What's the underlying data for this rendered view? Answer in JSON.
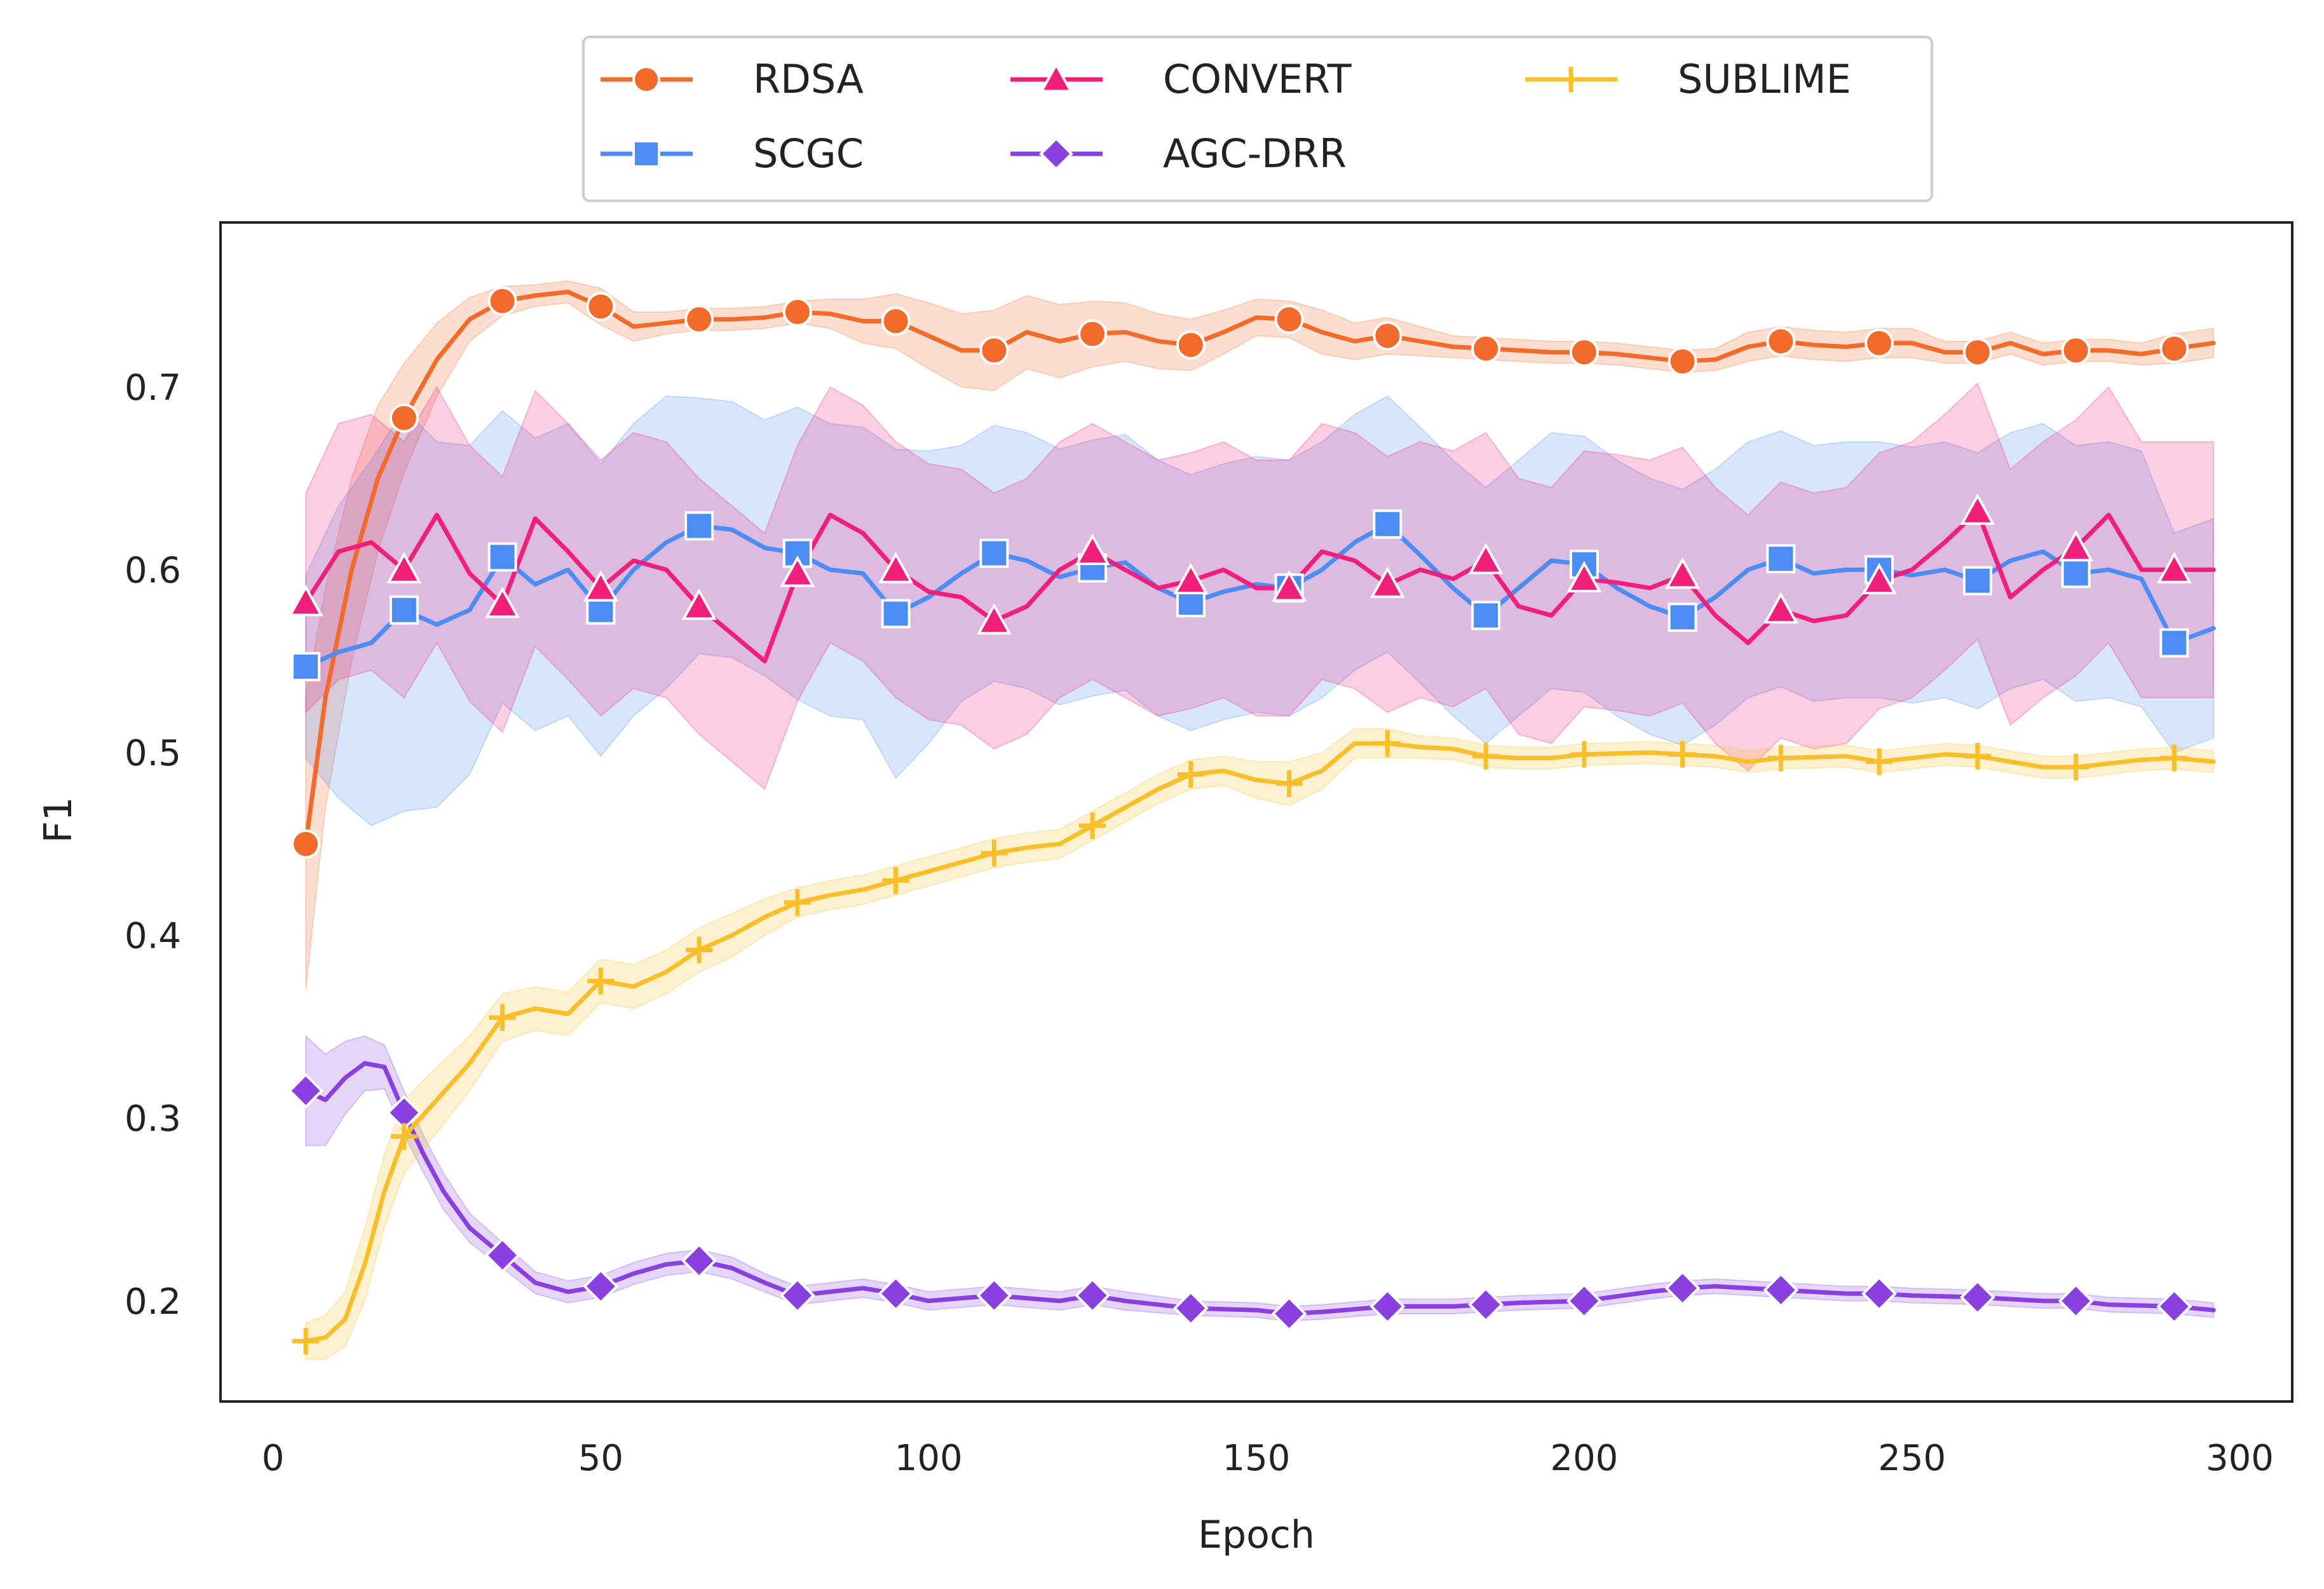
{
  "chart_data": {
    "type": "line",
    "title": "",
    "xlabel": "Epoch",
    "ylabel": "F1",
    "xlim": [
      -8,
      308
    ],
    "ylim": [
      0.145,
      0.79
    ],
    "xticks": [
      0,
      50,
      100,
      150,
      200,
      250,
      300
    ],
    "yticks": [
      0.2,
      0.3,
      0.4,
      0.5,
      0.6,
      0.7
    ],
    "xtick_labels": [
      "0",
      "50",
      "100",
      "150",
      "200",
      "250",
      "300"
    ],
    "ytick_labels": [
      "0.2",
      "0.3",
      "0.4",
      "0.5",
      "0.6",
      "0.7"
    ],
    "grid": false,
    "legend": {
      "position": "top-center-outside",
      "columns": 3
    },
    "marker_x": [
      5,
      20,
      35,
      50,
      65,
      80,
      95,
      110,
      125,
      140,
      155,
      170,
      185,
      200,
      215,
      230,
      245,
      260,
      275,
      290
    ],
    "series": [
      {
        "name": "RDSA",
        "color": "#f26b2a",
        "marker": "circle",
        "x": [
          5,
          8,
          12,
          16,
          20,
          25,
          30,
          35,
          40,
          45,
          50,
          55,
          60,
          65,
          70,
          75,
          80,
          85,
          90,
          95,
          100,
          105,
          110,
          115,
          120,
          125,
          130,
          135,
          140,
          145,
          150,
          155,
          160,
          165,
          170,
          175,
          180,
          185,
          190,
          195,
          200,
          205,
          210,
          215,
          220,
          225,
          230,
          235,
          240,
          245,
          250,
          255,
          260,
          265,
          270,
          275,
          280,
          285,
          290,
          296
        ],
        "values": [
          0.45,
          0.53,
          0.6,
          0.65,
          0.683,
          0.715,
          0.737,
          0.747,
          0.75,
          0.752,
          0.744,
          0.733,
          0.735,
          0.737,
          0.737,
          0.738,
          0.741,
          0.74,
          0.736,
          0.736,
          0.728,
          0.72,
          0.72,
          0.73,
          0.725,
          0.729,
          0.73,
          0.725,
          0.723,
          0.73,
          0.738,
          0.737,
          0.73,
          0.725,
          0.728,
          0.725,
          0.722,
          0.721,
          0.72,
          0.719,
          0.719,
          0.718,
          0.716,
          0.714,
          0.715,
          0.722,
          0.725,
          0.723,
          0.722,
          0.724,
          0.724,
          0.719,
          0.719,
          0.724,
          0.718,
          0.72,
          0.72,
          0.718,
          0.721,
          0.724
        ],
        "band": [
          0.08,
          0.06,
          0.05,
          0.04,
          0.03,
          0.02,
          0.012,
          0.008,
          0.006,
          0.006,
          0.01,
          0.008,
          0.006,
          0.006,
          0.006,
          0.006,
          0.006,
          0.008,
          0.012,
          0.015,
          0.018,
          0.02,
          0.022,
          0.02,
          0.02,
          0.018,
          0.016,
          0.015,
          0.014,
          0.012,
          0.01,
          0.01,
          0.012,
          0.01,
          0.01,
          0.008,
          0.006,
          0.006,
          0.006,
          0.006,
          0.006,
          0.006,
          0.006,
          0.006,
          0.006,
          0.008,
          0.008,
          0.008,
          0.008,
          0.008,
          0.008,
          0.006,
          0.006,
          0.006,
          0.006,
          0.006,
          0.006,
          0.006,
          0.008,
          0.008
        ]
      },
      {
        "name": "SCGC",
        "color": "#4c8cf5",
        "marker": "square",
        "x": [
          5,
          10,
          15,
          20,
          25,
          30,
          35,
          40,
          45,
          50,
          55,
          60,
          65,
          70,
          75,
          80,
          85,
          90,
          95,
          100,
          105,
          110,
          115,
          120,
          125,
          130,
          135,
          140,
          145,
          150,
          155,
          160,
          165,
          170,
          175,
          180,
          185,
          190,
          195,
          200,
          205,
          210,
          215,
          220,
          225,
          230,
          235,
          240,
          245,
          250,
          255,
          260,
          265,
          270,
          275,
          280,
          285,
          290,
          296
        ],
        "values": [
          0.547,
          0.555,
          0.56,
          0.578,
          0.57,
          0.578,
          0.607,
          0.592,
          0.6,
          0.578,
          0.6,
          0.615,
          0.624,
          0.622,
          0.612,
          0.609,
          0.6,
          0.598,
          0.576,
          0.585,
          0.598,
          0.609,
          0.605,
          0.596,
          0.601,
          0.604,
          0.59,
          0.582,
          0.588,
          0.592,
          0.59,
          0.6,
          0.615,
          0.625,
          0.608,
          0.59,
          0.575,
          0.59,
          0.605,
          0.603,
          0.59,
          0.58,
          0.574,
          0.585,
          0.6,
          0.606,
          0.598,
          0.6,
          0.6,
          0.597,
          0.6,
          0.594,
          0.605,
          0.61,
          0.598,
          0.6,
          0.595,
          0.56,
          0.568
        ],
        "band": [
          0.05,
          0.08,
          0.1,
          0.11,
          0.1,
          0.09,
          0.08,
          0.08,
          0.08,
          0.08,
          0.08,
          0.08,
          0.07,
          0.07,
          0.07,
          0.08,
          0.08,
          0.08,
          0.09,
          0.08,
          0.07,
          0.07,
          0.07,
          0.07,
          0.07,
          0.07,
          0.07,
          0.07,
          0.07,
          0.07,
          0.07,
          0.07,
          0.07,
          0.07,
          0.07,
          0.07,
          0.07,
          0.07,
          0.07,
          0.07,
          0.07,
          0.07,
          0.07,
          0.07,
          0.07,
          0.07,
          0.07,
          0.07,
          0.07,
          0.07,
          0.07,
          0.07,
          0.07,
          0.07,
          0.07,
          0.07,
          0.07,
          0.06,
          0.06
        ]
      },
      {
        "name": "CONVERT",
        "color": "#f0207a",
        "marker": "triangle",
        "x": [
          5,
          10,
          15,
          20,
          25,
          30,
          35,
          40,
          45,
          50,
          55,
          60,
          65,
          70,
          75,
          80,
          85,
          90,
          95,
          100,
          105,
          110,
          115,
          120,
          125,
          130,
          135,
          140,
          145,
          150,
          155,
          160,
          165,
          170,
          175,
          180,
          185,
          190,
          195,
          200,
          205,
          210,
          215,
          220,
          225,
          230,
          235,
          240,
          245,
          250,
          255,
          260,
          265,
          270,
          275,
          280,
          285,
          290,
          296
        ],
        "values": [
          0.582,
          0.61,
          0.615,
          0.6,
          0.63,
          0.598,
          0.581,
          0.628,
          0.61,
          0.59,
          0.605,
          0.6,
          0.58,
          0.565,
          0.55,
          0.598,
          0.63,
          0.62,
          0.6,
          0.588,
          0.585,
          0.572,
          0.58,
          0.6,
          0.61,
          0.6,
          0.59,
          0.594,
          0.6,
          0.59,
          0.59,
          0.61,
          0.605,
          0.592,
          0.6,
          0.595,
          0.605,
          0.58,
          0.575,
          0.595,
          0.593,
          0.59,
          0.597,
          0.575,
          0.56,
          0.578,
          0.572,
          0.575,
          0.594,
          0.6,
          0.615,
          0.632,
          0.585,
          0.6,
          0.612,
          0.63,
          0.6,
          0.6,
          0.6
        ],
        "band": [
          0.06,
          0.07,
          0.07,
          0.07,
          0.07,
          0.07,
          0.07,
          0.07,
          0.07,
          0.07,
          0.07,
          0.07,
          0.07,
          0.07,
          0.07,
          0.07,
          0.07,
          0.07,
          0.07,
          0.07,
          0.07,
          0.07,
          0.07,
          0.07,
          0.07,
          0.07,
          0.07,
          0.07,
          0.07,
          0.07,
          0.07,
          0.07,
          0.07,
          0.07,
          0.07,
          0.07,
          0.07,
          0.07,
          0.07,
          0.07,
          0.07,
          0.07,
          0.07,
          0.07,
          0.07,
          0.07,
          0.07,
          0.07,
          0.07,
          0.07,
          0.07,
          0.07,
          0.07,
          0.07,
          0.07,
          0.07,
          0.07,
          0.07,
          0.07
        ]
      },
      {
        "name": "AGC-DRR",
        "color": "#8a3fe0",
        "marker": "diamond",
        "x": [
          5,
          8,
          11,
          14,
          17,
          20,
          23,
          26,
          30,
          35,
          40,
          45,
          50,
          55,
          60,
          65,
          70,
          75,
          80,
          85,
          90,
          95,
          100,
          110,
          120,
          125,
          130,
          140,
          150,
          155,
          160,
          170,
          180,
          185,
          190,
          200,
          210,
          215,
          220,
          230,
          240,
          245,
          250,
          260,
          270,
          275,
          280,
          290,
          296
        ],
        "values": [
          0.315,
          0.31,
          0.322,
          0.33,
          0.328,
          0.303,
          0.28,
          0.26,
          0.24,
          0.225,
          0.21,
          0.205,
          0.208,
          0.215,
          0.22,
          0.222,
          0.218,
          0.21,
          0.203,
          0.205,
          0.207,
          0.204,
          0.2,
          0.203,
          0.2,
          0.203,
          0.2,
          0.196,
          0.195,
          0.193,
          0.194,
          0.197,
          0.197,
          0.198,
          0.199,
          0.2,
          0.205,
          0.207,
          0.208,
          0.206,
          0.204,
          0.204,
          0.203,
          0.202,
          0.2,
          0.2,
          0.198,
          0.197,
          0.195
        ],
        "band": [
          0.03,
          0.025,
          0.02,
          0.015,
          0.012,
          0.012,
          0.01,
          0.01,
          0.008,
          0.007,
          0.006,
          0.006,
          0.006,
          0.006,
          0.006,
          0.006,
          0.006,
          0.005,
          0.005,
          0.005,
          0.005,
          0.005,
          0.005,
          0.005,
          0.005,
          0.005,
          0.005,
          0.004,
          0.004,
          0.004,
          0.004,
          0.004,
          0.004,
          0.004,
          0.004,
          0.004,
          0.004,
          0.004,
          0.004,
          0.004,
          0.004,
          0.004,
          0.004,
          0.004,
          0.004,
          0.004,
          0.004,
          0.004,
          0.004
        ]
      },
      {
        "name": "SUBLIME",
        "color": "#f9bf2a",
        "marker": "plus",
        "x": [
          5,
          8,
          11,
          14,
          17,
          20,
          25,
          30,
          35,
          40,
          45,
          50,
          55,
          60,
          65,
          70,
          75,
          80,
          85,
          90,
          95,
          100,
          105,
          110,
          115,
          120,
          125,
          130,
          135,
          140,
          145,
          150,
          155,
          160,
          165,
          170,
          175,
          180,
          185,
          190,
          195,
          200,
          210,
          215,
          220,
          225,
          230,
          240,
          245,
          250,
          255,
          260,
          265,
          270,
          275,
          280,
          285,
          290,
          296
        ],
        "values": [
          0.178,
          0.18,
          0.19,
          0.22,
          0.26,
          0.29,
          0.31,
          0.33,
          0.355,
          0.36,
          0.357,
          0.375,
          0.372,
          0.38,
          0.392,
          0.4,
          0.41,
          0.418,
          0.422,
          0.425,
          0.43,
          0.435,
          0.44,
          0.445,
          0.448,
          0.45,
          0.46,
          0.47,
          0.48,
          0.488,
          0.49,
          0.485,
          0.483,
          0.49,
          0.505,
          0.505,
          0.503,
          0.502,
          0.498,
          0.497,
          0.497,
          0.499,
          0.5,
          0.499,
          0.498,
          0.495,
          0.497,
          0.498,
          0.495,
          0.497,
          0.499,
          0.498,
          0.495,
          0.492,
          0.492,
          0.494,
          0.496,
          0.497,
          0.495
        ],
        "band": [
          0.01,
          0.012,
          0.015,
          0.02,
          0.02,
          0.02,
          0.018,
          0.015,
          0.013,
          0.012,
          0.012,
          0.012,
          0.012,
          0.012,
          0.012,
          0.012,
          0.01,
          0.008,
          0.008,
          0.008,
          0.008,
          0.008,
          0.008,
          0.008,
          0.008,
          0.008,
          0.008,
          0.008,
          0.008,
          0.008,
          0.008,
          0.01,
          0.012,
          0.01,
          0.008,
          0.008,
          0.006,
          0.006,
          0.006,
          0.006,
          0.006,
          0.006,
          0.006,
          0.006,
          0.006,
          0.006,
          0.006,
          0.006,
          0.006,
          0.006,
          0.006,
          0.006,
          0.006,
          0.006,
          0.006,
          0.006,
          0.006,
          0.006,
          0.006
        ]
      }
    ]
  }
}
